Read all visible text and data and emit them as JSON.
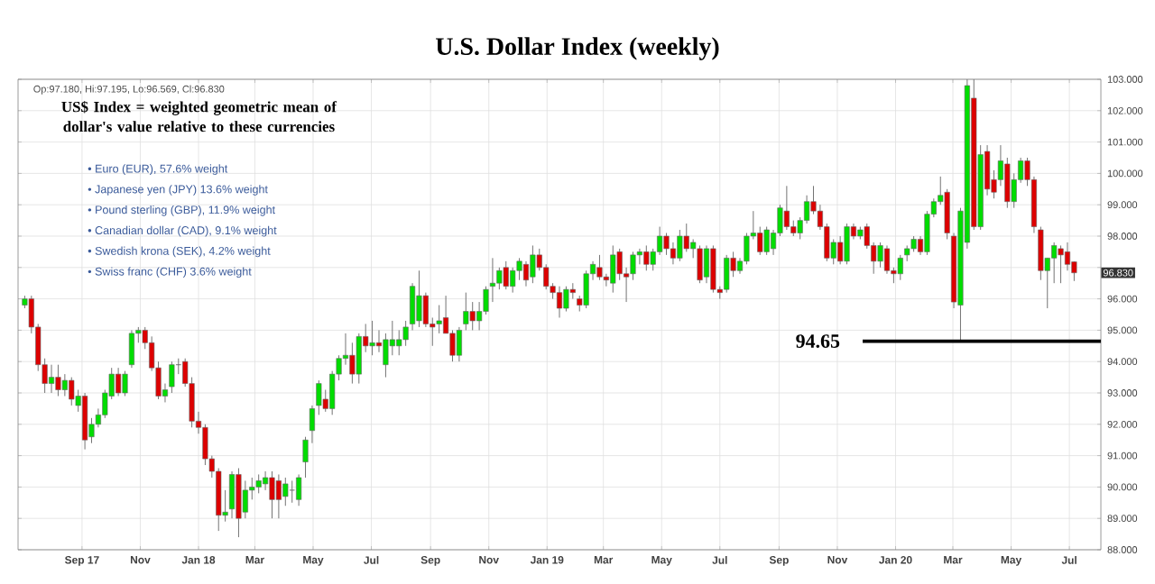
{
  "chart_data": {
    "type": "candlestick",
    "title": "U.S. Dollar Index (weekly)",
    "annotations": [
      "Op:97.180, Hi:97.195, Lo:96.569, Cl:96.830",
      "US$ Index = weighted geometric mean of dollar's value relative to these currencies",
      "• Euro (EUR), 57.6% weight",
      "• Japanese yen (JPY) 13.6% weight",
      "• Pound sterling (GBP), 11.9% weight",
      "• Canadian dollar (CAD), 9.1% weight",
      "• Swedish krona (SEK), 4.2% weight",
      "• Swiss franc (CHF) 3.6% weight",
      {
        "text": "96.830",
        "y": 96.83
      }
    ],
    "x": [
      "2017-07-03",
      "2017-07-10",
      "2017-07-17",
      "2017-07-24",
      "2017-07-31",
      "2017-08-07",
      "2017-08-14",
      "2017-08-21",
      "2017-08-28",
      "2017-09-04",
      "2017-09-11",
      "2017-09-18",
      "2017-09-25",
      "2017-10-02",
      "2017-10-09",
      "2017-10-16",
      "2017-10-23",
      "2017-10-30",
      "2017-11-06",
      "2017-11-13",
      "2017-11-20",
      "2017-11-27",
      "2017-12-04",
      "2017-12-11",
      "2017-12-18",
      "2017-12-25",
      "2018-01-01",
      "2018-01-08",
      "2018-01-15",
      "2018-01-22",
      "2018-01-29",
      "2018-02-05",
      "2018-02-12",
      "2018-02-19",
      "2018-02-26",
      "2018-03-05",
      "2018-03-12",
      "2018-03-19",
      "2018-03-26",
      "2018-04-02",
      "2018-04-09",
      "2018-04-16",
      "2018-04-23",
      "2018-04-30",
      "2018-05-07",
      "2018-05-14",
      "2018-05-21",
      "2018-05-28",
      "2018-06-04",
      "2018-06-11",
      "2018-06-18",
      "2018-06-25",
      "2018-07-02",
      "2018-07-09",
      "2018-07-16",
      "2018-07-23",
      "2018-07-30",
      "2018-08-06",
      "2018-08-13",
      "2018-08-20",
      "2018-08-27",
      "2018-09-03",
      "2018-09-10",
      "2018-09-17",
      "2018-09-24",
      "2018-10-01",
      "2018-10-08",
      "2018-10-15",
      "2018-10-22",
      "2018-10-29",
      "2018-11-05",
      "2018-11-12",
      "2018-11-19",
      "2018-11-26",
      "2018-12-03",
      "2018-12-10",
      "2018-12-17",
      "2018-12-24",
      "2018-12-31",
      "2019-01-07",
      "2019-01-14",
      "2019-01-21",
      "2019-01-28",
      "2019-02-04",
      "2019-02-11",
      "2019-02-18",
      "2019-02-25",
      "2019-03-04",
      "2019-03-11",
      "2019-03-18",
      "2019-03-25",
      "2019-04-01",
      "2019-04-08",
      "2019-04-15",
      "2019-04-22",
      "2019-04-29",
      "2019-05-06",
      "2019-05-13",
      "2019-05-20",
      "2019-05-27",
      "2019-06-03",
      "2019-06-10",
      "2019-06-17",
      "2019-06-24",
      "2019-07-01",
      "2019-07-08",
      "2019-07-15",
      "2019-07-22",
      "2019-07-29",
      "2019-08-05",
      "2019-08-12",
      "2019-08-19",
      "2019-08-26",
      "2019-09-02",
      "2019-09-09",
      "2019-09-16",
      "2019-09-23",
      "2019-09-30",
      "2019-10-07",
      "2019-10-14",
      "2019-10-21",
      "2019-10-28",
      "2019-11-04",
      "2019-11-11",
      "2019-11-18",
      "2019-11-25",
      "2019-12-02",
      "2019-12-09",
      "2019-12-16",
      "2019-12-23",
      "2019-12-30",
      "2020-01-06",
      "2020-01-13",
      "2020-01-20",
      "2020-01-27",
      "2020-02-03",
      "2020-02-10",
      "2020-02-17",
      "2020-02-24",
      "2020-03-02",
      "2020-03-09",
      "2020-03-16",
      "2020-03-23",
      "2020-03-30",
      "2020-04-06",
      "2020-04-13",
      "2020-04-20",
      "2020-04-27",
      "2020-05-04",
      "2020-05-11",
      "2020-05-18",
      "2020-05-25",
      "2020-06-01",
      "2020-06-08",
      "2020-06-15",
      "2020-06-22",
      "2020-06-29",
      "2020-07-06"
    ],
    "ohlc": [
      [
        95.8,
        96.1,
        95.7,
        96.0
      ],
      [
        96.0,
        96.1,
        94.9,
        95.1
      ],
      [
        95.1,
        95.2,
        93.7,
        93.9
      ],
      [
        93.9,
        94.1,
        93.0,
        93.3
      ],
      [
        93.3,
        93.9,
        93.0,
        93.5
      ],
      [
        93.5,
        93.9,
        92.9,
        93.1
      ],
      [
        93.1,
        93.6,
        92.9,
        93.4
      ],
      [
        93.4,
        93.5,
        92.6,
        92.8
      ],
      [
        92.6,
        93.1,
        92.4,
        92.9
      ],
      [
        92.9,
        93.0,
        91.2,
        91.5
      ],
      [
        91.6,
        92.2,
        91.4,
        92.0
      ],
      [
        92.0,
        92.5,
        91.9,
        92.3
      ],
      [
        92.3,
        93.1,
        92.2,
        93.0
      ],
      [
        92.9,
        93.8,
        92.8,
        93.6
      ],
      [
        93.6,
        93.8,
        92.9,
        93.0
      ],
      [
        93.0,
        93.7,
        92.9,
        93.6
      ],
      [
        93.9,
        95.0,
        93.8,
        94.9
      ],
      [
        94.9,
        95.1,
        94.6,
        95.0
      ],
      [
        95.0,
        95.1,
        94.4,
        94.6
      ],
      [
        94.6,
        94.8,
        93.7,
        93.8
      ],
      [
        93.8,
        94.0,
        92.8,
        92.9
      ],
      [
        92.9,
        93.3,
        92.7,
        93.1
      ],
      [
        93.2,
        94.0,
        93.0,
        93.9
      ],
      [
        93.9,
        94.1,
        93.6,
        93.9
      ],
      [
        94.0,
        94.1,
        93.2,
        93.3
      ],
      [
        93.3,
        93.5,
        91.9,
        92.1
      ],
      [
        92.1,
        92.4,
        91.7,
        91.9
      ],
      [
        91.9,
        92.0,
        90.7,
        90.9
      ],
      [
        90.9,
        91.0,
        90.3,
        90.5
      ],
      [
        90.5,
        90.6,
        88.6,
        89.1
      ],
      [
        89.1,
        89.9,
        88.9,
        89.2
      ],
      [
        89.3,
        90.5,
        89.0,
        90.4
      ],
      [
        90.4,
        90.6,
        88.4,
        89.0
      ],
      [
        89.2,
        90.2,
        89.0,
        89.9
      ],
      [
        89.9,
        90.3,
        89.6,
        90.0
      ],
      [
        90.0,
        90.4,
        89.8,
        90.2
      ],
      [
        90.1,
        90.5,
        89.9,
        90.3
      ],
      [
        90.3,
        90.5,
        89.0,
        89.6
      ],
      [
        90.2,
        90.4,
        89.0,
        89.6
      ],
      [
        89.7,
        90.3,
        89.4,
        90.1
      ],
      [
        89.9,
        90.2,
        89.5,
        89.9
      ],
      [
        89.6,
        90.4,
        89.4,
        90.3
      ],
      [
        90.8,
        91.6,
        90.3,
        91.5
      ],
      [
        91.8,
        92.6,
        91.4,
        92.5
      ],
      [
        92.6,
        93.4,
        92.3,
        93.3
      ],
      [
        92.8,
        93.1,
        92.4,
        92.5
      ],
      [
        92.5,
        93.7,
        92.3,
        93.6
      ],
      [
        93.6,
        94.2,
        93.4,
        94.1
      ],
      [
        94.1,
        94.9,
        93.9,
        94.2
      ],
      [
        94.2,
        94.6,
        93.3,
        93.6
      ],
      [
        93.6,
        94.9,
        93.3,
        94.8
      ],
      [
        94.8,
        95.2,
        94.3,
        94.5
      ],
      [
        94.5,
        95.3,
        94.2,
        94.6
      ],
      [
        94.6,
        95.0,
        94.3,
        94.5
      ],
      [
        93.9,
        94.9,
        93.5,
        94.7
      ],
      [
        94.5,
        95.3,
        94.2,
        94.7
      ],
      [
        94.5,
        95.0,
        94.2,
        94.7
      ],
      [
        94.7,
        95.3,
        94.5,
        95.1
      ],
      [
        95.2,
        96.5,
        95.0,
        96.4
      ],
      [
        95.3,
        96.9,
        95.1,
        96.1
      ],
      [
        96.1,
        96.2,
        95.1,
        95.2
      ],
      [
        95.2,
        95.4,
        94.5,
        95.1
      ],
      [
        95.2,
        95.8,
        94.9,
        95.3
      ],
      [
        95.4,
        96.1,
        94.9,
        94.9
      ],
      [
        94.9,
        95.0,
        94.0,
        94.2
      ],
      [
        94.2,
        95.1,
        94.0,
        95.0
      ],
      [
        95.2,
        96.2,
        95.0,
        95.6
      ],
      [
        95.6,
        95.9,
        95.0,
        95.3
      ],
      [
        95.3,
        95.9,
        95.0,
        95.6
      ],
      [
        95.6,
        96.4,
        95.5,
        96.3
      ],
      [
        96.4,
        97.3,
        95.9,
        96.5
      ],
      [
        96.5,
        97.0,
        96.3,
        96.9
      ],
      [
        97.0,
        97.2,
        96.3,
        96.4
      ],
      [
        96.4,
        97.0,
        96.2,
        96.9
      ],
      [
        96.9,
        97.3,
        96.6,
        97.2
      ],
      [
        97.1,
        97.2,
        96.4,
        96.6
      ],
      [
        96.7,
        97.7,
        96.5,
        97.4
      ],
      [
        97.4,
        97.6,
        96.9,
        97.0
      ],
      [
        97.0,
        97.1,
        96.3,
        96.4
      ],
      [
        96.4,
        96.5,
        96.0,
        96.2
      ],
      [
        96.2,
        96.4,
        95.4,
        95.7
      ],
      [
        95.7,
        96.4,
        95.6,
        96.3
      ],
      [
        96.3,
        96.5,
        96.0,
        96.2
      ],
      [
        96.0,
        96.1,
        95.6,
        95.8
      ],
      [
        95.8,
        96.9,
        95.7,
        96.8
      ],
      [
        96.8,
        97.2,
        96.6,
        97.1
      ],
      [
        97.0,
        97.4,
        96.6,
        96.7
      ],
      [
        96.7,
        96.8,
        96.4,
        96.6
      ],
      [
        96.5,
        97.7,
        96.2,
        97.4
      ],
      [
        97.5,
        97.6,
        96.6,
        96.8
      ],
      [
        96.8,
        97.0,
        95.9,
        96.7
      ],
      [
        96.8,
        97.5,
        96.6,
        97.4
      ],
      [
        97.4,
        97.6,
        97.1,
        97.5
      ],
      [
        97.5,
        97.7,
        96.9,
        97.1
      ],
      [
        97.1,
        97.6,
        96.9,
        97.5
      ],
      [
        97.5,
        98.3,
        97.4,
        98.0
      ],
      [
        98.0,
        98.1,
        97.4,
        97.6
      ],
      [
        97.6,
        97.8,
        97.1,
        97.3
      ],
      [
        97.3,
        98.2,
        97.2,
        98.0
      ],
      [
        98.0,
        98.4,
        97.5,
        97.6
      ],
      [
        97.6,
        97.9,
        97.3,
        97.8
      ],
      [
        97.6,
        97.7,
        96.5,
        96.6
      ],
      [
        96.7,
        97.7,
        96.5,
        97.6
      ],
      [
        97.6,
        97.7,
        96.2,
        96.3
      ],
      [
        96.3,
        96.4,
        96.0,
        96.2
      ],
      [
        96.3,
        97.4,
        96.2,
        97.3
      ],
      [
        97.3,
        97.5,
        96.7,
        96.9
      ],
      [
        96.9,
        97.3,
        96.8,
        97.2
      ],
      [
        97.2,
        98.1,
        97.1,
        98.0
      ],
      [
        98.0,
        98.8,
        97.9,
        98.1
      ],
      [
        98.1,
        98.3,
        97.4,
        97.5
      ],
      [
        97.5,
        98.3,
        97.4,
        98.2
      ],
      [
        97.6,
        98.2,
        97.4,
        98.1
      ],
      [
        98.1,
        99.0,
        98.0,
        98.9
      ],
      [
        98.8,
        99.6,
        98.2,
        98.3
      ],
      [
        98.3,
        98.5,
        98.0,
        98.1
      ],
      [
        98.1,
        98.6,
        97.9,
        98.5
      ],
      [
        98.5,
        99.3,
        98.4,
        99.1
      ],
      [
        99.1,
        99.6,
        98.7,
        98.8
      ],
      [
        98.8,
        99.0,
        98.2,
        98.3
      ],
      [
        98.3,
        98.4,
        97.2,
        97.3
      ],
      [
        97.3,
        97.9,
        97.1,
        97.8
      ],
      [
        97.8,
        98.0,
        97.1,
        97.2
      ],
      [
        97.2,
        98.4,
        97.1,
        98.3
      ],
      [
        98.3,
        98.4,
        97.9,
        98.0
      ],
      [
        98.0,
        98.3,
        97.9,
        98.2
      ],
      [
        98.3,
        98.4,
        97.6,
        97.7
      ],
      [
        97.7,
        97.8,
        96.8,
        97.2
      ],
      [
        97.2,
        97.8,
        97.0,
        97.7
      ],
      [
        97.6,
        97.7,
        96.8,
        96.9
      ],
      [
        96.9,
        97.0,
        96.5,
        96.8
      ],
      [
        96.8,
        97.4,
        96.6,
        97.3
      ],
      [
        97.4,
        97.7,
        97.2,
        97.6
      ],
      [
        97.6,
        98.0,
        97.5,
        97.9
      ],
      [
        97.9,
        98.0,
        97.4,
        97.5
      ],
      [
        97.5,
        98.8,
        97.4,
        98.7
      ],
      [
        98.7,
        99.2,
        98.6,
        99.1
      ],
      [
        99.1,
        99.9,
        99.0,
        99.3
      ],
      [
        99.4,
        99.5,
        97.9,
        98.1
      ],
      [
        98.0,
        98.1,
        95.7,
        95.9
      ],
      [
        95.8,
        98.9,
        94.65,
        98.8
      ],
      [
        97.8,
        103.0,
        97.6,
        102.8
      ],
      [
        102.4,
        103.0,
        98.2,
        98.3
      ],
      [
        98.3,
        100.9,
        98.2,
        100.6
      ],
      [
        100.7,
        100.9,
        99.3,
        99.5
      ],
      [
        99.8,
        100.1,
        99.2,
        99.4
      ],
      [
        99.8,
        100.9,
        99.6,
        100.4
      ],
      [
        100.3,
        100.5,
        98.9,
        99.1
      ],
      [
        99.1,
        100.0,
        98.9,
        99.8
      ],
      [
        99.8,
        100.5,
        99.7,
        100.4
      ],
      [
        100.4,
        100.5,
        99.6,
        99.8
      ],
      [
        99.8,
        99.9,
        98.1,
        98.3
      ],
      [
        98.2,
        98.3,
        96.6,
        96.9
      ],
      [
        96.9,
        97.3,
        95.7,
        97.3
      ],
      [
        97.3,
        97.8,
        96.5,
        97.7
      ],
      [
        97.6,
        97.7,
        96.5,
        97.4
      ],
      [
        97.5,
        97.8,
        96.9,
        97.1
      ],
      [
        97.18,
        97.195,
        96.569,
        96.83
      ]
    ],
    "xlim": [
      "2017-06-26",
      "2020-08-03"
    ],
    "xticks": [
      {
        "value": "2017-09-01",
        "label": "Sep 17"
      },
      {
        "value": "2017-11-01",
        "label": "Nov"
      },
      {
        "value": "2018-01-01",
        "label": "Jan 18"
      },
      {
        "value": "2018-03-01",
        "label": "Mar"
      },
      {
        "value": "2018-05-01",
        "label": "May"
      },
      {
        "value": "2018-07-01",
        "label": "Jul"
      },
      {
        "value": "2018-09-01",
        "label": "Sep"
      },
      {
        "value": "2018-11-01",
        "label": "Nov"
      },
      {
        "value": "2019-01-01",
        "label": "Jan 19"
      },
      {
        "value": "2019-03-01",
        "label": "Mar"
      },
      {
        "value": "2019-05-01",
        "label": "May"
      },
      {
        "value": "2019-07-01",
        "label": "Jul"
      },
      {
        "value": "2019-09-01",
        "label": "Sep"
      },
      {
        "value": "2019-11-01",
        "label": "Nov"
      },
      {
        "value": "2020-01-01",
        "label": "Jan 20"
      },
      {
        "value": "2020-03-01",
        "label": "Mar"
      },
      {
        "value": "2020-05-01",
        "label": "May"
      },
      {
        "value": "2020-07-01",
        "label": "Jul"
      }
    ],
    "ylim": [
      88,
      103
    ],
    "yticks": [
      {
        "value": 88,
        "label": "88.000"
      },
      {
        "value": 89,
        "label": "89.000"
      },
      {
        "value": 90,
        "label": "90.000"
      },
      {
        "value": 91,
        "label": "91.000"
      },
      {
        "value": 92,
        "label": "92.000"
      },
      {
        "value": 93,
        "label": "93.000"
      },
      {
        "value": 94,
        "label": "94.000"
      },
      {
        "value": 95,
        "label": "95.000"
      },
      {
        "value": 96,
        "label": "96.000"
      },
      {
        "value": 97,
        "label": null
      },
      {
        "value": 98,
        "label": "98.000"
      },
      {
        "value": 99,
        "label": "99.000"
      },
      {
        "value": 100,
        "label": "100.000"
      },
      {
        "value": 101,
        "label": "101.000"
      },
      {
        "value": 102,
        "label": "102.000"
      },
      {
        "value": 103,
        "label": "103.000"
      }
    ],
    "ref_lines": [
      {
        "axis": "y",
        "value": 94.65,
        "label": "94.65",
        "color": "#000000"
      }
    ],
    "grid": true
  }
}
